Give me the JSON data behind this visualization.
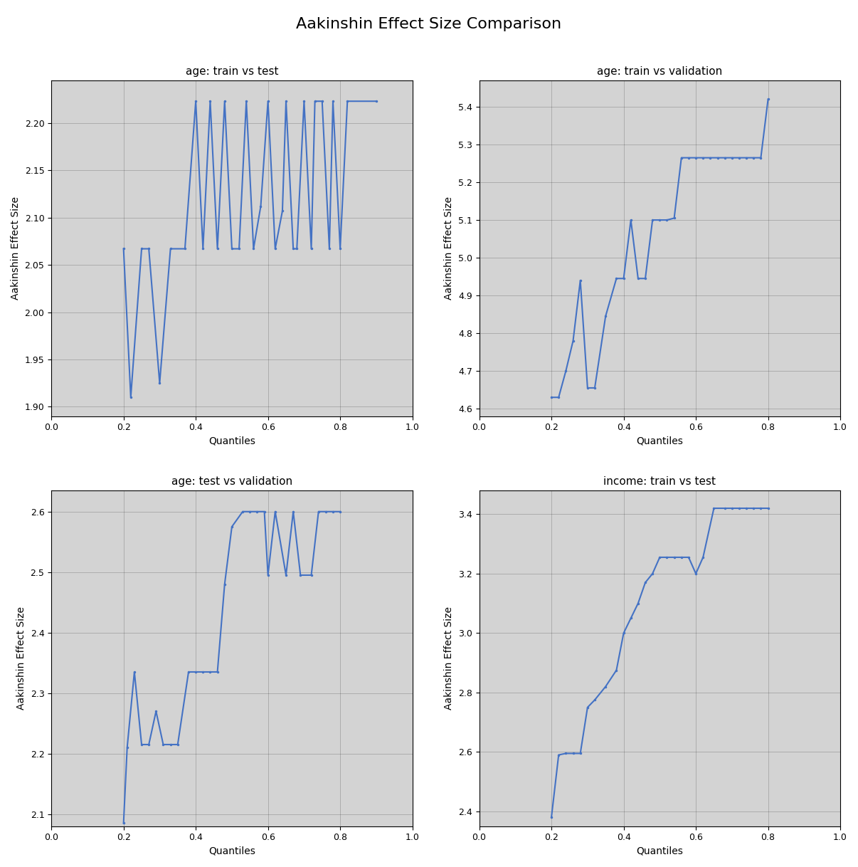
{
  "title": "Aakinshin Effect Size Comparison",
  "ylabel": "Aakinshin Effect Size",
  "xlabel": "Quantiles",
  "background_color": "#d3d3d3",
  "line_color": "#4472c4",
  "line_width": 1.5,
  "marker": ".",
  "marker_size": 3,
  "subplots": [
    {
      "title": "age: train vs test",
      "x": [
        0.2,
        0.22,
        0.25,
        0.27,
        0.3,
        0.33,
        0.37,
        0.4,
        0.42,
        0.44,
        0.46,
        0.48,
        0.5,
        0.52,
        0.54,
        0.56,
        0.58,
        0.6,
        0.62,
        0.64,
        0.65,
        0.67,
        0.68,
        0.7,
        0.72,
        0.73,
        0.75,
        0.77,
        0.78,
        0.8,
        0.82,
        0.9
      ],
      "y": [
        2.067,
        1.91,
        2.067,
        2.067,
        1.925,
        2.067,
        2.067,
        2.223,
        2.067,
        2.223,
        2.067,
        2.223,
        2.067,
        2.067,
        2.223,
        2.067,
        2.112,
        2.223,
        2.067,
        2.107,
        2.223,
        2.067,
        2.067,
        2.223,
        2.067,
        2.223,
        2.223,
        2.067,
        2.223,
        2.067,
        2.223,
        2.223
      ],
      "ylim": [
        1.89,
        2.245
      ],
      "yticks": [
        1.9,
        1.95,
        2.0,
        2.05,
        2.1,
        2.15,
        2.2
      ]
    },
    {
      "title": "age: train vs validation",
      "x": [
        0.2,
        0.22,
        0.24,
        0.26,
        0.28,
        0.3,
        0.32,
        0.35,
        0.38,
        0.4,
        0.42,
        0.44,
        0.46,
        0.48,
        0.5,
        0.52,
        0.54,
        0.56,
        0.58,
        0.6,
        0.62,
        0.64,
        0.66,
        0.68,
        0.7,
        0.72,
        0.74,
        0.76,
        0.78,
        0.8
      ],
      "y": [
        4.63,
        4.63,
        4.7,
        4.78,
        4.94,
        4.655,
        4.655,
        4.845,
        4.945,
        4.945,
        5.1,
        4.945,
        4.945,
        5.1,
        5.1,
        5.1,
        5.105,
        5.265,
        5.265,
        5.265,
        5.265,
        5.265,
        5.265,
        5.265,
        5.265,
        5.265,
        5.265,
        5.265,
        5.265,
        5.42
      ],
      "ylim": [
        4.58,
        5.47
      ],
      "yticks": [
        4.6,
        4.7,
        4.8,
        4.9,
        5.0,
        5.1,
        5.2,
        5.3,
        5.4
      ]
    },
    {
      "title": "age: test vs validation",
      "x": [
        0.2,
        0.21,
        0.23,
        0.25,
        0.27,
        0.29,
        0.31,
        0.33,
        0.35,
        0.38,
        0.4,
        0.42,
        0.44,
        0.46,
        0.48,
        0.5,
        0.53,
        0.55,
        0.57,
        0.59,
        0.6,
        0.62,
        0.65,
        0.67,
        0.69,
        0.72,
        0.74,
        0.76,
        0.78,
        0.8
      ],
      "y": [
        2.085,
        2.21,
        2.335,
        2.215,
        2.215,
        2.27,
        2.215,
        2.215,
        2.215,
        2.335,
        2.335,
        2.335,
        2.335,
        2.335,
        2.48,
        2.575,
        2.6,
        2.6,
        2.6,
        2.6,
        2.495,
        2.6,
        2.495,
        2.6,
        2.495,
        2.495,
        2.6,
        2.6,
        2.6,
        2.6
      ],
      "ylim": [
        2.08,
        2.635
      ],
      "yticks": [
        2.1,
        2.2,
        2.3,
        2.4,
        2.5,
        2.6
      ]
    },
    {
      "title": "income: train vs test",
      "x": [
        0.2,
        0.22,
        0.24,
        0.26,
        0.28,
        0.3,
        0.32,
        0.35,
        0.38,
        0.4,
        0.42,
        0.44,
        0.46,
        0.48,
        0.5,
        0.52,
        0.54,
        0.56,
        0.58,
        0.6,
        0.62,
        0.65,
        0.68,
        0.7,
        0.72,
        0.74,
        0.76,
        0.78,
        0.8
      ],
      "y": [
        2.38,
        2.59,
        2.595,
        2.595,
        2.595,
        2.75,
        2.775,
        2.82,
        2.875,
        3.0,
        3.05,
        3.1,
        3.17,
        3.2,
        3.255,
        3.255,
        3.255,
        3.255,
        3.255,
        3.2,
        3.255,
        3.42,
        3.42,
        3.42,
        3.42,
        3.42,
        3.42,
        3.42,
        3.42
      ],
      "ylim": [
        2.35,
        3.48
      ],
      "yticks": [
        2.4,
        2.6,
        2.8,
        3.0,
        3.2,
        3.4
      ]
    }
  ]
}
